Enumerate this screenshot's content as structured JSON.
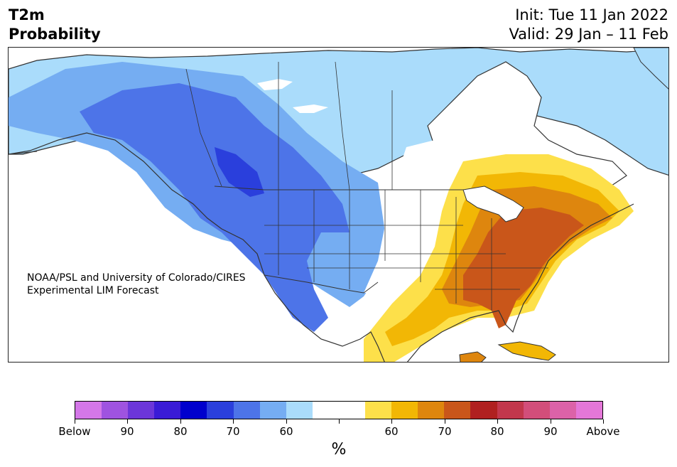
{
  "header": {
    "title_line1": "T2m",
    "title_line2": "Probability",
    "init": "Init: Tue 11 Jan 2022",
    "valid": "Valid: 29 Jan – 11 Feb"
  },
  "map": {
    "credit_line1": "NOAA/PSL and University of Colorado/CIRES",
    "credit_line2": "Experimental LIM Forecast",
    "region": "North America",
    "cold_anomaly_region": "western and central North America, Alaska, Canada",
    "warm_anomaly_region": "eastern United States, Florida, Cuba"
  },
  "colorbar": {
    "unit": "%",
    "colors": [
      "#d477e8",
      "#9f53e0",
      "#6c36d9",
      "#3a1bd6",
      "#0000cd",
      "#2a3fdc",
      "#4d74e8",
      "#75adf2",
      "#aadcfb",
      "#ffffff",
      "#ffffff",
      "#fde04a",
      "#f2b705",
      "#de860e",
      "#c9561a",
      "#b02020",
      "#c2374c",
      "#d24e7a",
      "#dc62a8",
      "#e477d8"
    ],
    "tick_labels": [
      "Below",
      "90",
      "80",
      "70",
      "60",
      "",
      "60",
      "70",
      "80",
      "90",
      "Above"
    ]
  },
  "palette": {
    "blue_light": "#aadcfb",
    "blue_mid": "#75adf2",
    "blue": "#4d74e8",
    "blue_dark": "#2a3fdc",
    "yellow": "#fde04a",
    "gold": "#f2b705",
    "orange": "#de860e",
    "rust": "#c9561a"
  }
}
